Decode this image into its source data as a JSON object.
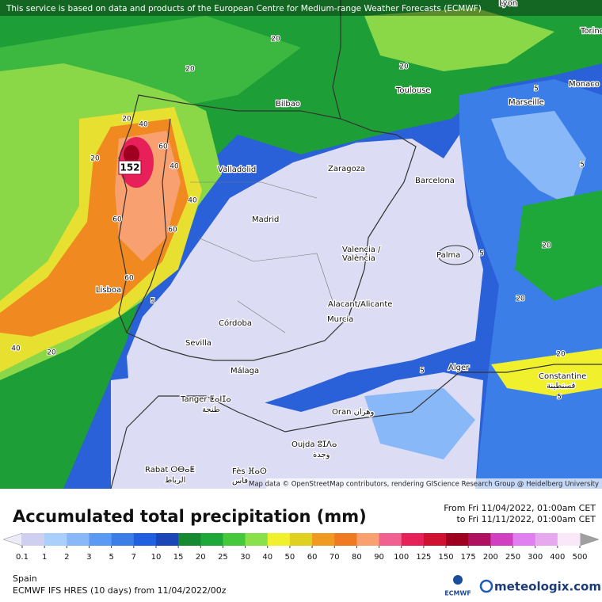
{
  "header": {
    "notice": "This service is based on data and products of the European Centre for Medium-range Weather Forecasts (ECMWF)"
  },
  "map": {
    "cities": [
      "Lyon",
      "Torino",
      "Monaco",
      "Toulouse",
      "Marseille",
      "Bilbao",
      "Zaragoza",
      "Barcelona",
      "Valladolid",
      "Madrid",
      "Valencia /",
      "València",
      "Palma",
      "Lisboa",
      "Alacant/Alicante",
      "Murcia",
      "Córdoba",
      "Sevilla",
      "Alger",
      "Málaga",
      "Constantine",
      "قسنطينة",
      "Tanger ⵟⴰⵏⵊⴰ",
      "طنجة",
      "Oran وهران",
      "Oujda ⵓⵊⴷⴰ",
      "وجدة",
      "Rabat ⵔⴱⴰⵟ",
      "الرباط",
      "Fès ⴼⴰⵙ",
      "فاس"
    ],
    "contour_labels": [
      20,
      20,
      20,
      20,
      40,
      60,
      40,
      40,
      60,
      60,
      60,
      40,
      20,
      20,
      20,
      20,
      20,
      5,
      5,
      5,
      5,
      5,
      5
    ],
    "maximum": 152,
    "credit": "Map data © OpenStreetMap contributors, rendering GIScience Research Group @ Heidelberg University"
  },
  "legend": {
    "title": "Accumulated total precipitation (mm)",
    "period_from": "From Fri 11/04/2022, 01:00am CET",
    "period_to": "to Fri 11/11/2022, 01:00am CET",
    "colorbar": {
      "ticks": [
        0.1,
        1,
        2,
        3,
        5,
        7,
        10,
        15,
        20,
        25,
        30,
        40,
        50,
        60,
        70,
        80,
        90,
        100,
        125,
        150,
        175,
        200,
        250,
        300,
        400,
        500
      ],
      "colors": [
        "#cfcff0",
        "#a8d0fa",
        "#88b8f8",
        "#5a9af2",
        "#3c7ee8",
        "#2060e0",
        "#1a46b8",
        "#168a30",
        "#1ea83a",
        "#46c83c",
        "#8ae048",
        "#f0f02c",
        "#e0d020",
        "#f09a20",
        "#f07a20",
        "#f8a070",
        "#f06090",
        "#e8205a",
        "#d01030",
        "#a00020",
        "#b01060",
        "#d040c0",
        "#e080f0",
        "#e8a8f0",
        "#f8e8f8"
      ],
      "under_color": "#ececf8",
      "over_color": "#a0a0a0"
    },
    "region": "Spain",
    "model": "ECMWF IFS HRES (10 days) from 11/04/2022/00z",
    "ecmwf_logo": "ECMWF",
    "brand": "meteologix.com"
  }
}
